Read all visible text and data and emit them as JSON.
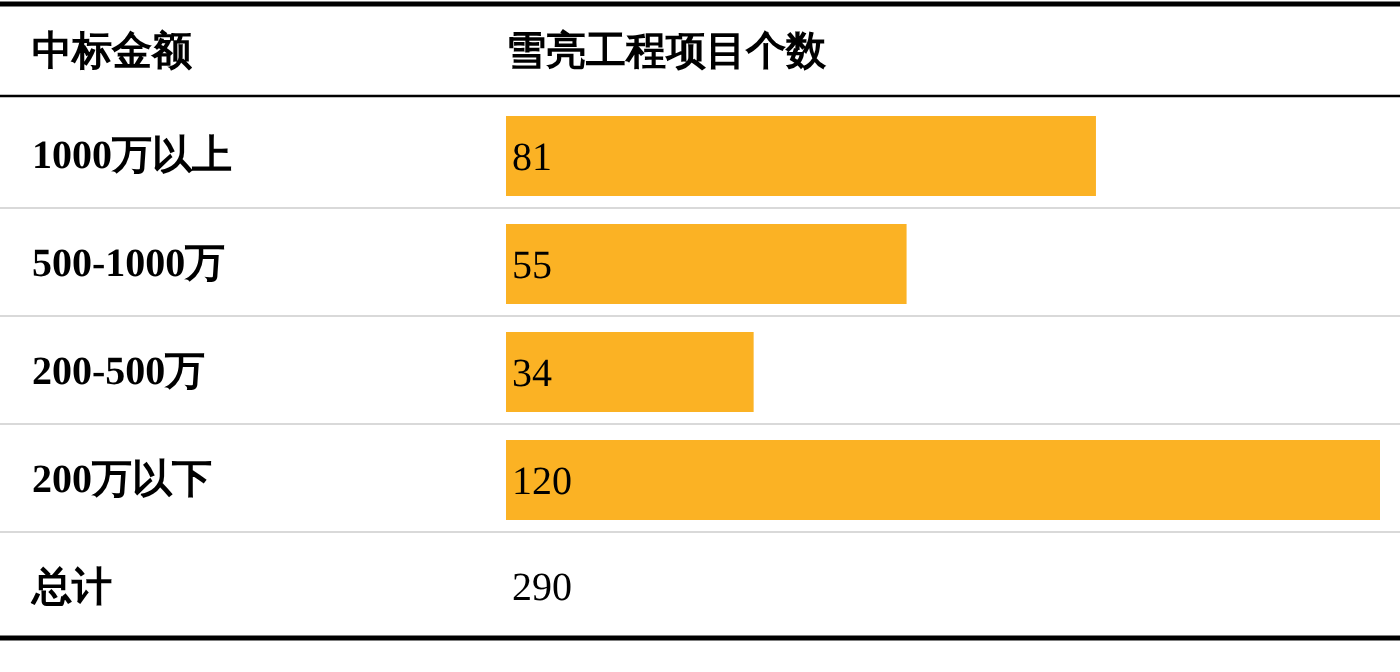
{
  "chart_data": {
    "type": "bar",
    "orientation": "horizontal",
    "ylabel": "中标金额",
    "xlabel": "雪亮工程项目个数",
    "categories": [
      "1000万以上",
      "500-1000万",
      "200-500万",
      "200万以下"
    ],
    "values": [
      81,
      55,
      34,
      120
    ],
    "color": "#fbb224",
    "data_labels": true,
    "annotations": [
      "总计",
      "290"
    ]
  }
}
